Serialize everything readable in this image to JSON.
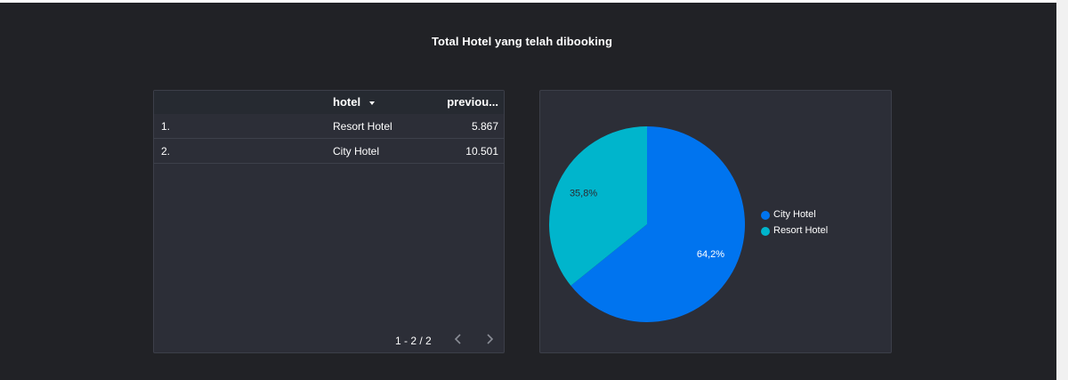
{
  "title": "Total Hotel yang telah dibooking",
  "table": {
    "columns": [
      "hotel",
      "previou..."
    ],
    "rows": [
      {
        "index": "1.",
        "hotel": "Resort Hotel",
        "value": "5.867"
      },
      {
        "index": "2.",
        "hotel": "City Hotel",
        "value": "10.501"
      }
    ],
    "pagination": "1 - 2 / 2"
  },
  "pie": {
    "legend": [
      {
        "label": "City Hotel",
        "color": "#0074ef"
      },
      {
        "label": "Resort Hotel",
        "color": "#00b5cc"
      }
    ],
    "labels": {
      "city": "64,2%",
      "resort": "35,8%"
    }
  },
  "chart_data": {
    "type": "pie",
    "categories": [
      "City Hotel",
      "Resort Hotel"
    ],
    "values": [
      64.2,
      35.8
    ],
    "colors": [
      "#0074ef",
      "#00b5cc"
    ],
    "legend_position": "right"
  }
}
